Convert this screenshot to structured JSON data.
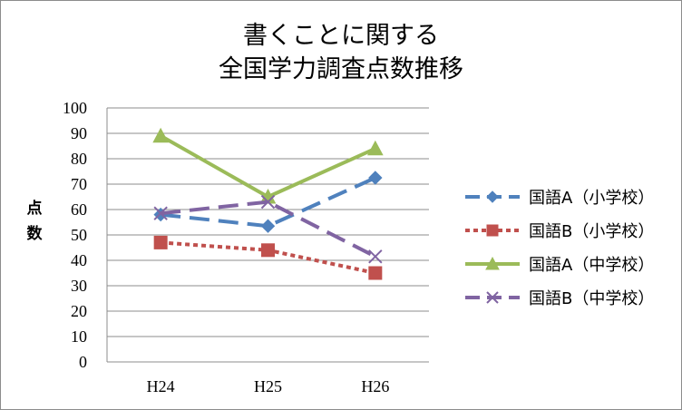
{
  "chart_data": {
    "type": "line",
    "title_lines": [
      "書くことに関する",
      "全国学力調査点数推移"
    ],
    "ylabel_chars": [
      "点",
      "数"
    ],
    "xlabel": "",
    "categories": [
      "H24",
      "H25",
      "H26"
    ],
    "ylim": [
      0,
      100
    ],
    "y_ticks": [
      0,
      10,
      20,
      30,
      40,
      50,
      60,
      70,
      80,
      90,
      100
    ],
    "grid": true,
    "legend_position": "right",
    "series": [
      {
        "name": "国語A（小学校）",
        "values": [
          58,
          53.5,
          72.5
        ],
        "color": "#4f81bd",
        "dash": "long-dash",
        "marker": "diamond"
      },
      {
        "name": "国語B（小学校）",
        "values": [
          47,
          44,
          35
        ],
        "color": "#c0504d",
        "dash": "dotted",
        "marker": "square"
      },
      {
        "name": "国語A（中学校）",
        "values": [
          89,
          65,
          84
        ],
        "color": "#9bbb59",
        "dash": "solid",
        "marker": "triangle"
      },
      {
        "name": "国語B（中学校）",
        "values": [
          58.5,
          63,
          41.5
        ],
        "color": "#8064a2",
        "dash": "long-dash",
        "marker": "x"
      }
    ]
  }
}
